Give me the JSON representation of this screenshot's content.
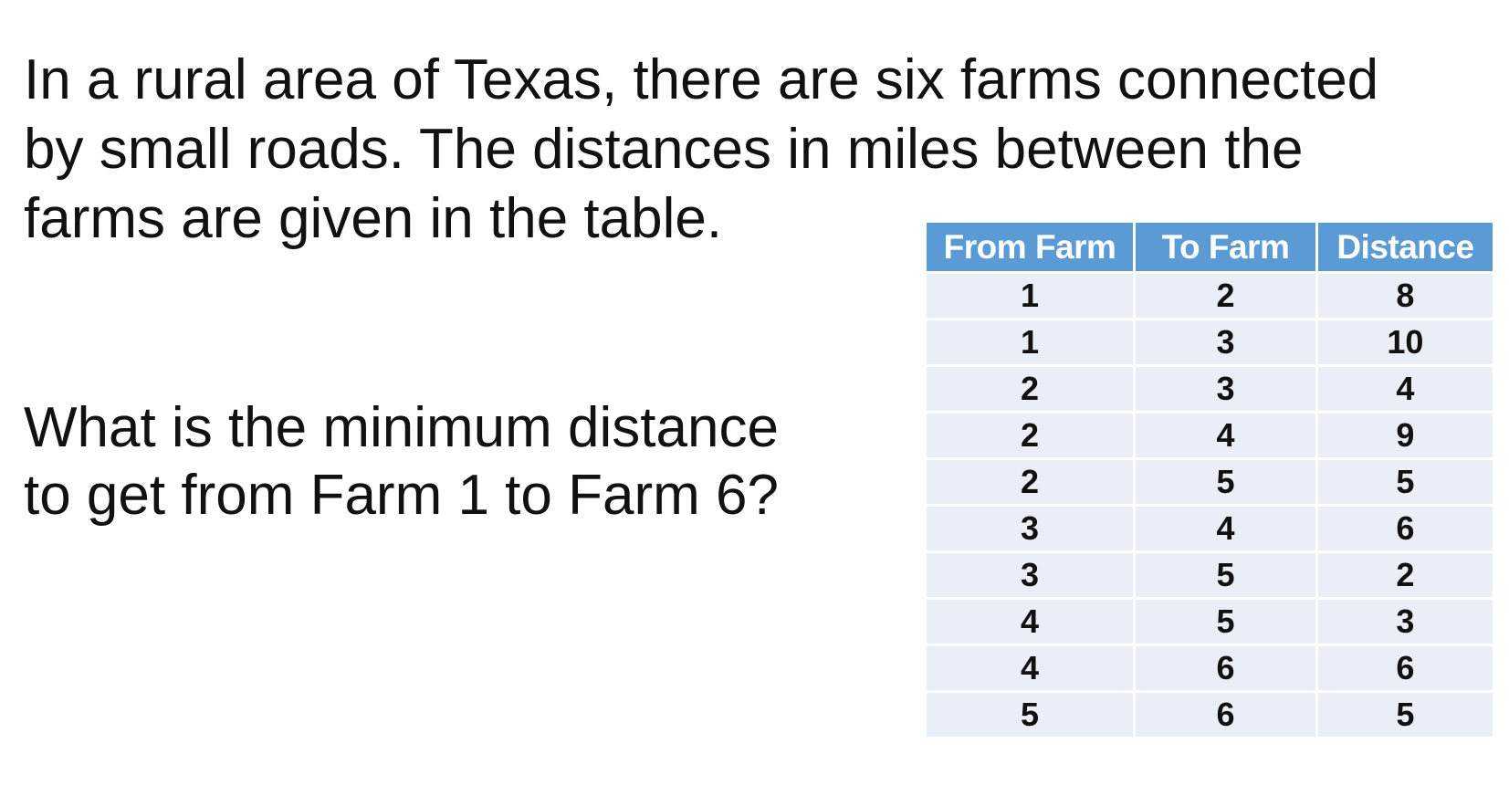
{
  "intro": {
    "lines": [
      "In a rural area of Texas, there are six farms connected",
      "by small roads.  The distances in miles between the",
      "farms are given in the table."
    ]
  },
  "question": {
    "lines": [
      "What is the minimum distance",
      "to get from Farm 1 to Farm 6?"
    ]
  },
  "table": {
    "headers": [
      "From Farm",
      "To Farm",
      "Distance"
    ],
    "rows": [
      [
        "1",
        "2",
        "8"
      ],
      [
        "1",
        "3",
        "10"
      ],
      [
        "2",
        "3",
        "4"
      ],
      [
        "2",
        "4",
        "9"
      ],
      [
        "2",
        "5",
        "5"
      ],
      [
        "3",
        "4",
        "6"
      ],
      [
        "3",
        "5",
        "2"
      ],
      [
        "4",
        "5",
        "3"
      ],
      [
        "4",
        "6",
        "6"
      ],
      [
        "5",
        "6",
        "5"
      ]
    ]
  },
  "colors": {
    "header_bg": "#5b9bd5",
    "row_bg": "#e9eef7"
  }
}
